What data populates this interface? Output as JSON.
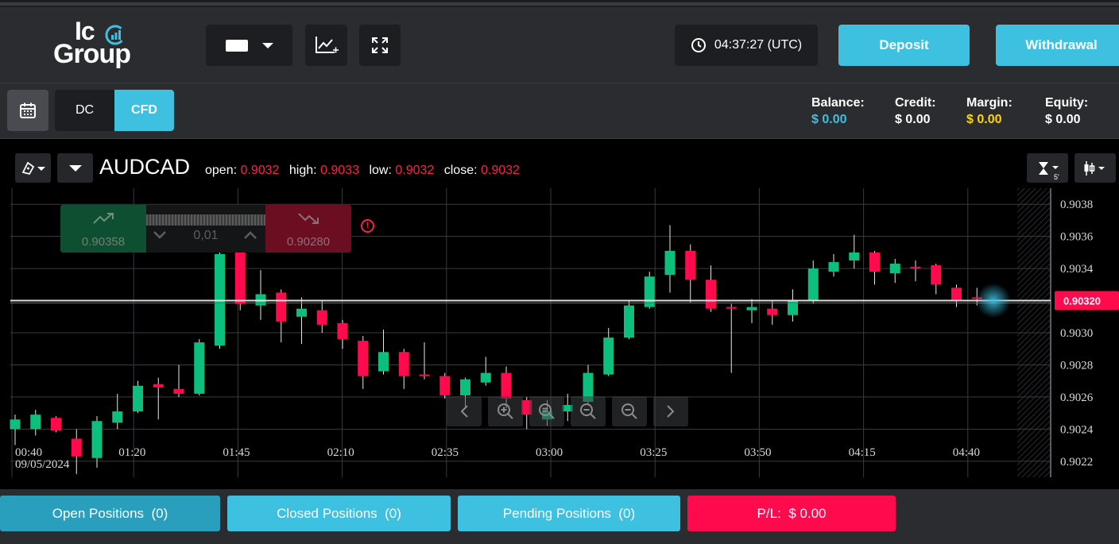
{
  "logo": {
    "line1": "Ic",
    "line2": "Group"
  },
  "header": {
    "clock": "04:37:27 (UTC)",
    "deposit_label": "Deposit",
    "withdrawal_label": "Withdrawal"
  },
  "modes": {
    "dc_label": "DC",
    "cfd_label": "CFD"
  },
  "account": {
    "balance_label": "Balance:",
    "balance_value": "$ 0.00",
    "credit_label": "Credit:",
    "credit_value": "$ 0.00",
    "margin_label": "Margin:",
    "margin_value": "$ 0.00",
    "equity_label": "Equity:",
    "equity_value": "$ 0.00",
    "colors": {
      "balance": "#3ec0e0",
      "credit": "#ffffff",
      "margin": "#ffd500",
      "equity": "#ffffff"
    }
  },
  "chart_header": {
    "symbol": "AUDCAD",
    "open_label": "open:",
    "open": "0.9032",
    "high_label": "high:",
    "high": "0.9033",
    "low_label": "low:",
    "low": "0.9032",
    "close_label": "close:",
    "close": "0.9032",
    "timeframe": "5'"
  },
  "trade": {
    "buy_price": "0.90358",
    "sell_price": "0.90280",
    "lot": "0,01"
  },
  "chart_data": {
    "type": "candlestick",
    "x_ticks": [
      "00:40",
      "01:20",
      "01:45",
      "02:10",
      "02:35",
      "03:00",
      "03:25",
      "03:50",
      "04:15",
      "04:40"
    ],
    "x_sub": "09/05/2024",
    "y_ticks": [
      "0.9038",
      "0.9036",
      "0.9034",
      "0.9032",
      "0.9030",
      "0.9028",
      "0.9026",
      "0.9024",
      "0.9022"
    ],
    "y_range": [
      0.9021,
      0.9039
    ],
    "current_price": "0.90320",
    "up_color": "#0cbf7c",
    "down_color": "#ff0a4d",
    "candles": [
      [
        0.9024,
        0.90246,
        0.9023,
        0.90249
      ],
      [
        0.9024,
        0.90249,
        0.90236,
        0.90252
      ],
      [
        0.90247,
        0.90239,
        0.90238,
        0.90248
      ],
      [
        0.90234,
        0.90223,
        0.90212,
        0.9024
      ],
      [
        0.90222,
        0.90245,
        0.90216,
        0.90248
      ],
      [
        0.90244,
        0.90251,
        0.9024,
        0.90262
      ],
      [
        0.90251,
        0.90267,
        0.9025,
        0.9027
      ],
      [
        0.90268,
        0.90266,
        0.90246,
        0.90272
      ],
      [
        0.90265,
        0.90262,
        0.9026,
        0.9028
      ],
      [
        0.90262,
        0.90294,
        0.90261,
        0.90296
      ],
      [
        0.90292,
        0.90349,
        0.9029,
        0.9035
      ],
      [
        0.9035,
        0.90318,
        0.90314,
        0.90353
      ],
      [
        0.90317,
        0.90324,
        0.90308,
        0.90339
      ],
      [
        0.90325,
        0.90307,
        0.90294,
        0.90327
      ],
      [
        0.9031,
        0.90315,
        0.90293,
        0.90322
      ],
      [
        0.90314,
        0.90305,
        0.903,
        0.9032
      ],
      [
        0.90306,
        0.90296,
        0.9029,
        0.90308
      ],
      [
        0.90295,
        0.90273,
        0.90265,
        0.90298
      ],
      [
        0.90276,
        0.90288,
        0.90274,
        0.90302
      ],
      [
        0.90288,
        0.90273,
        0.90265,
        0.9029
      ],
      [
        0.90274,
        0.90273,
        0.90271,
        0.90294
      ],
      [
        0.90273,
        0.90261,
        0.90259,
        0.90275
      ],
      [
        0.90261,
        0.90271,
        0.90254,
        0.90272
      ],
      [
        0.90269,
        0.90275,
        0.90267,
        0.90285
      ],
      [
        0.90275,
        0.90259,
        0.90253,
        0.90279
      ],
      [
        0.90258,
        0.90249,
        0.9024,
        0.9026
      ],
      [
        0.90246,
        0.90251,
        0.90242,
        0.90258
      ],
      [
        0.90251,
        0.90255,
        0.90245,
        0.90262
      ],
      [
        0.90257,
        0.90275,
        0.90255,
        0.9028
      ],
      [
        0.90274,
        0.90297,
        0.90273,
        0.90303
      ],
      [
        0.90297,
        0.90317,
        0.90296,
        0.9032
      ],
      [
        0.90316,
        0.90335,
        0.90315,
        0.90338
      ],
      [
        0.90336,
        0.90351,
        0.90325,
        0.90367
      ],
      [
        0.90351,
        0.90333,
        0.90319,
        0.90355
      ],
      [
        0.90333,
        0.90315,
        0.90313,
        0.90342
      ],
      [
        0.90316,
        0.90315,
        0.90275,
        0.90318
      ],
      [
        0.90314,
        0.90316,
        0.90306,
        0.90321
      ],
      [
        0.90315,
        0.90311,
        0.90305,
        0.9032
      ],
      [
        0.90311,
        0.9032,
        0.90307,
        0.90327
      ],
      [
        0.9032,
        0.9034,
        0.90318,
        0.90345
      ],
      [
        0.90338,
        0.90344,
        0.90335,
        0.90349
      ],
      [
        0.90345,
        0.9035,
        0.9034,
        0.90361
      ],
      [
        0.9035,
        0.90338,
        0.9033,
        0.90351
      ],
      [
        0.90337,
        0.90343,
        0.90331,
        0.90346
      ],
      [
        0.90341,
        0.9034,
        0.90332,
        0.90345
      ],
      [
        0.90342,
        0.9033,
        0.90324,
        0.90343
      ],
      [
        0.90328,
        0.9032,
        0.90316,
        0.9033
      ],
      [
        0.90322,
        0.90321,
        0.90317,
        0.90328
      ]
    ]
  },
  "positions": {
    "open_label": "Open Positions",
    "open_count": "(0)",
    "closed_label": "Closed Positions",
    "closed_count": "(0)",
    "pending_label": "Pending Positions",
    "pending_count": "(0)",
    "pl_label": "P/L:",
    "pl_value": "$ 0.00"
  }
}
